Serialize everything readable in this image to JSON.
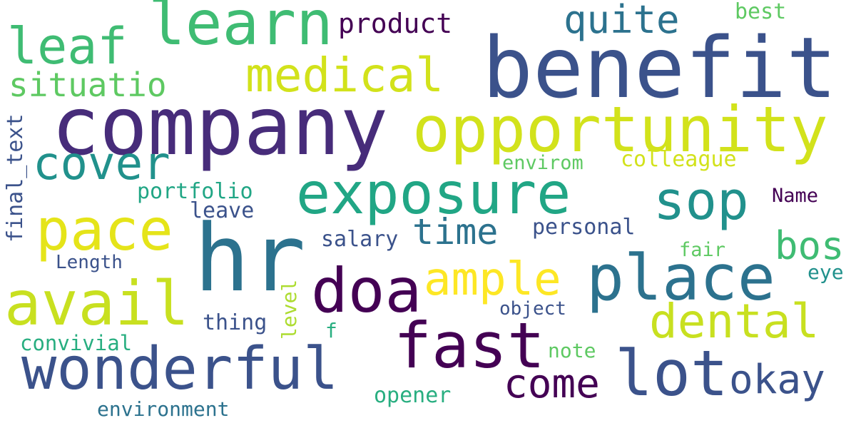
{
  "colors": {
    "background": "#ffffff",
    "palette": [
      "#440154",
      "#472c7a",
      "#3b528b",
      "#2c728e",
      "#21918c",
      "#28ae80",
      "#5ec962",
      "#addc30",
      "#d2e21b",
      "#fde725"
    ]
  },
  "words": [
    {
      "text": "company",
      "color": "#472c7a"
    },
    {
      "text": "benefit",
      "color": "#3b528b"
    },
    {
      "text": "opportunity",
      "color": "#d2e21b"
    },
    {
      "text": "hr",
      "color": "#2c728e"
    },
    {
      "text": "learn",
      "color": "#3fbc73"
    },
    {
      "text": "exposure",
      "color": "#21a685"
    },
    {
      "text": "wonderful",
      "color": "#3b528b"
    },
    {
      "text": "fast",
      "color": "#440154"
    },
    {
      "text": "place",
      "color": "#2c728e"
    },
    {
      "text": "avail",
      "color": "#c8e020"
    },
    {
      "text": "pace",
      "color": "#e5e419"
    },
    {
      "text": "lot",
      "color": "#3b528b"
    },
    {
      "text": "doa",
      "color": "#440154"
    },
    {
      "text": "medical",
      "color": "#d2e21b"
    },
    {
      "text": "leaf",
      "color": "#3fbc73"
    },
    {
      "text": "sop",
      "color": "#21918c"
    },
    {
      "text": "cover",
      "color": "#21918c"
    },
    {
      "text": "ample",
      "color": "#fde725"
    },
    {
      "text": "dental",
      "color": "#c8e020"
    },
    {
      "text": "come",
      "color": "#440154"
    },
    {
      "text": "okay",
      "color": "#3b528b"
    },
    {
      "text": "quite",
      "color": "#2c728e"
    },
    {
      "text": "time",
      "color": "#2c728e"
    },
    {
      "text": "situatio",
      "color": "#5ec962"
    },
    {
      "text": "product",
      "color": "#440154"
    },
    {
      "text": "bos",
      "color": "#3fbc73"
    },
    {
      "text": "final_text",
      "color": "#3b528b"
    },
    {
      "text": "personal",
      "color": "#3b528b"
    },
    {
      "text": "portfolio",
      "color": "#21a685"
    },
    {
      "text": "leave",
      "color": "#3b528b"
    },
    {
      "text": "salary",
      "color": "#3b528b"
    },
    {
      "text": "thing",
      "color": "#3b528b"
    },
    {
      "text": "colleague",
      "color": "#d2e21b"
    },
    {
      "text": "envirom",
      "color": "#5ec962"
    },
    {
      "text": "Name",
      "color": "#440154"
    },
    {
      "text": "fair",
      "color": "#5ec962"
    },
    {
      "text": "eye",
      "color": "#21918c"
    },
    {
      "text": "object",
      "color": "#3b528b"
    },
    {
      "text": "level",
      "color": "#addc30"
    },
    {
      "text": "Length",
      "color": "#3b528b"
    },
    {
      "text": "note",
      "color": "#5ec962"
    },
    {
      "text": "convivial",
      "color": "#28ae80"
    },
    {
      "text": "opener",
      "color": "#28ae80"
    },
    {
      "text": "environment",
      "color": "#2c728e"
    },
    {
      "text": "f",
      "color": "#28ae80"
    },
    {
      "text": "best",
      "color": "#5ec962"
    }
  ]
}
